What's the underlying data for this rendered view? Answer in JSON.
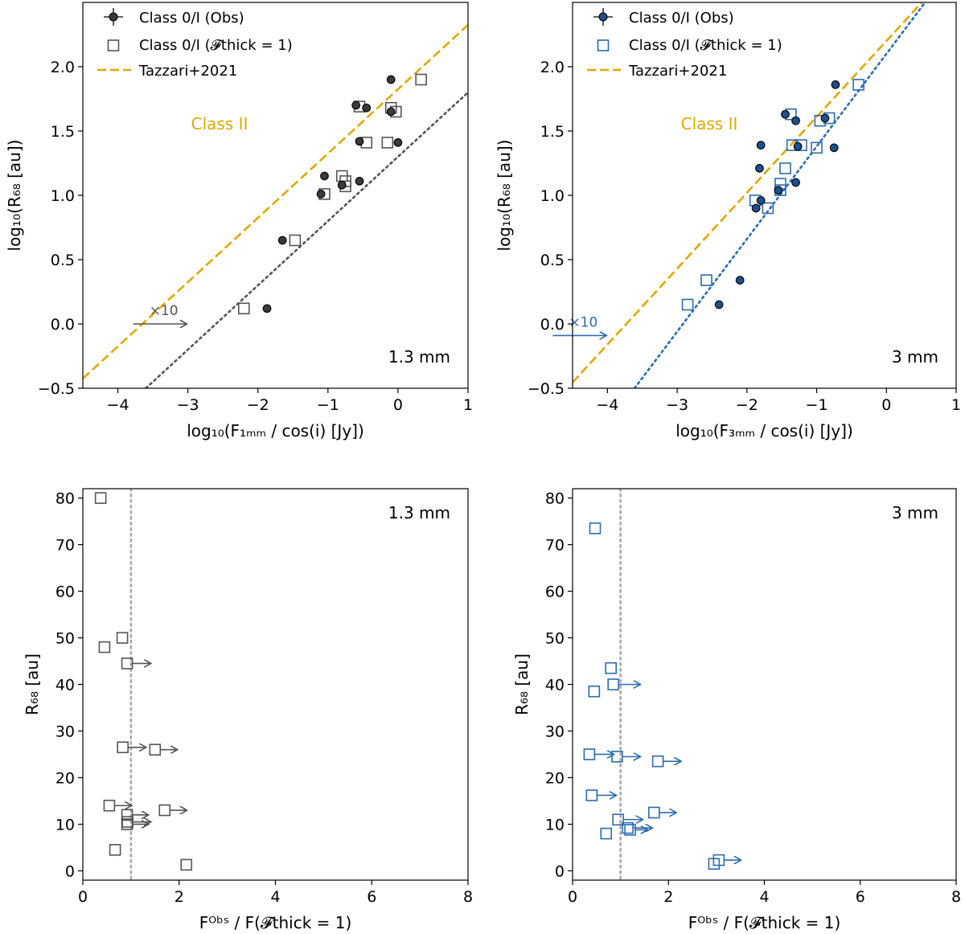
{
  "colors": {
    "gray_marker": "#3a3a3a",
    "gray_line": "#555555",
    "blue_marker": "#1f4e8c",
    "blue_line": "#2b6cb0",
    "tazzari": "#e0a800",
    "vline": "#a8a8a8"
  },
  "chart_data": [
    {
      "id": "top-left",
      "type": "scatter",
      "color_key": "gray",
      "xlabel": "log₁₀(F₁ₘₘ / cos(i) [Jy])",
      "ylabel": "log₁₀(R₆₈ [au])",
      "xlim": [
        -4.5,
        1.0
      ],
      "ylim": [
        -0.5,
        2.5
      ],
      "xticks": [
        -4,
        -3,
        -2,
        -1,
        0,
        1
      ],
      "yticks": [
        -0.5,
        0.0,
        0.5,
        1.0,
        1.5,
        2.0
      ],
      "xtick_labels": [
        "−4",
        "−3",
        "−2",
        "−1",
        "0",
        "1"
      ],
      "ytick_labels": [
        "−0.5",
        "0.0",
        "0.5",
        "1.0",
        "1.5",
        "2.0"
      ],
      "legend": [
        "Class 0/I (Obs)",
        "Class 0/I (𝓕thick = 1)",
        "Tazzari+2021"
      ],
      "legend_position": "top-left",
      "region_label": "Class II",
      "band_label": "1.3 mm",
      "arrow_label": "×10",
      "arrow_from": [
        -3.0,
        0.0
      ],
      "tazzari_line": {
        "slope": 0.5,
        "intercept": 1.825
      },
      "fit_line": {
        "slope": 0.5,
        "intercept": 1.3
      },
      "obs_points": [
        [
          -0.1,
          1.9
        ],
        [
          -0.6,
          1.7
        ],
        [
          -0.45,
          1.68
        ],
        [
          -0.1,
          1.65
        ],
        [
          -0.55,
          1.42
        ],
        [
          0.0,
          1.41
        ],
        [
          -1.05,
          1.15
        ],
        [
          -0.55,
          1.11
        ],
        [
          -0.8,
          1.08
        ],
        [
          -1.1,
          1.01
        ],
        [
          -1.65,
          0.65
        ],
        [
          -1.87,
          0.12
        ]
      ],
      "model_points": [
        [
          0.33,
          1.9
        ],
        [
          -0.55,
          1.69
        ],
        [
          -0.1,
          1.68
        ],
        [
          -0.03,
          1.65
        ],
        [
          -0.45,
          1.41
        ],
        [
          -0.15,
          1.41
        ],
        [
          -0.8,
          1.15
        ],
        [
          -0.75,
          1.11
        ],
        [
          -0.75,
          1.07
        ],
        [
          -1.05,
          1.01
        ],
        [
          -1.47,
          0.65
        ],
        [
          -2.2,
          0.12
        ]
      ]
    },
    {
      "id": "top-right",
      "type": "scatter",
      "color_key": "blue",
      "xlabel": "log₁₀(F₃ₘₘ / cos(i) [Jy])",
      "ylabel": "log₁₀(R₆₈ [au])",
      "xlim": [
        -4.5,
        1.0
      ],
      "ylim": [
        -0.5,
        2.5
      ],
      "xticks": [
        -4,
        -3,
        -2,
        -1,
        0,
        1
      ],
      "yticks": [
        -0.5,
        0.0,
        0.5,
        1.0,
        1.5,
        2.0
      ],
      "xtick_labels": [
        "−4",
        "−3",
        "−2",
        "−1",
        "0",
        "1"
      ],
      "ytick_labels": [
        "−0.5",
        "0.0",
        "0.5",
        "1.0",
        "1.5",
        "2.0"
      ],
      "legend": [
        "Class 0/I (Obs)",
        "Class 0/I (𝓕thick = 1)",
        "Tazzari+2021"
      ],
      "legend_position": "top-left",
      "region_label": "Class II",
      "band_label": "3 mm",
      "arrow_label": "×10",
      "arrow_from": [
        -4.0,
        -0.09
      ],
      "tazzari_line": {
        "slope": 0.59,
        "intercept": 2.2
      },
      "fit_line": {
        "slope": 0.72,
        "intercept": 2.1
      },
      "obs_points": [
        [
          -0.73,
          1.86
        ],
        [
          -1.45,
          1.63
        ],
        [
          -1.3,
          1.58
        ],
        [
          -0.88,
          1.6
        ],
        [
          -1.8,
          1.39
        ],
        [
          -1.27,
          1.38
        ],
        [
          -0.75,
          1.37
        ],
        [
          -1.82,
          1.21
        ],
        [
          -1.3,
          1.1
        ],
        [
          -1.55,
          1.04
        ],
        [
          -1.8,
          0.96
        ],
        [
          -1.87,
          0.9
        ],
        [
          -2.1,
          0.34
        ],
        [
          -2.4,
          0.15
        ]
      ],
      "model_points": [
        [
          -0.4,
          1.86
        ],
        [
          -1.37,
          1.63
        ],
        [
          -0.95,
          1.58
        ],
        [
          -0.82,
          1.6
        ],
        [
          -1.35,
          1.39
        ],
        [
          -1.22,
          1.39
        ],
        [
          -1.0,
          1.37
        ],
        [
          -1.45,
          1.21
        ],
        [
          -1.52,
          1.09
        ],
        [
          -1.52,
          1.04
        ],
        [
          -1.88,
          0.96
        ],
        [
          -1.7,
          0.9
        ],
        [
          -2.58,
          0.34
        ],
        [
          -2.85,
          0.15
        ]
      ]
    },
    {
      "id": "bottom-left",
      "type": "scatter",
      "color_key": "gray",
      "xlabel": "Fᴼᵇˢ / F(𝓕thick = 1)",
      "ylabel": "R₆₈ [au]",
      "xlim": [
        0,
        8
      ],
      "ylim": [
        -2,
        82
      ],
      "xticks": [
        0,
        2,
        4,
        6,
        8
      ],
      "yticks": [
        0,
        10,
        20,
        30,
        40,
        50,
        60,
        70,
        80
      ],
      "xtick_labels": [
        "0",
        "2",
        "4",
        "6",
        "8"
      ],
      "ytick_labels": [
        "0",
        "10",
        "20",
        "30",
        "40",
        "50",
        "60",
        "70",
        "80"
      ],
      "band_label": "1.3 mm",
      "vline_x": 1.0,
      "points": [
        [
          0.37,
          80
        ],
        [
          0.45,
          48
        ],
        [
          0.82,
          50
        ],
        [
          0.92,
          44.5
        ],
        [
          0.83,
          26.5
        ],
        [
          1.5,
          26
        ],
        [
          0.55,
          14
        ],
        [
          0.92,
          12
        ],
        [
          1.7,
          13
        ],
        [
          0.93,
          10.5
        ],
        [
          0.92,
          10
        ],
        [
          0.67,
          4.5
        ],
        [
          2.15,
          1.3
        ]
      ],
      "arrows": [
        [
          0.92,
          44.5,
          1.4
        ],
        [
          0.83,
          26.5,
          1.3
        ],
        [
          1.5,
          26,
          1.95
        ],
        [
          0.55,
          14,
          1.0
        ],
        [
          0.92,
          12,
          1.35
        ],
        [
          1.7,
          13,
          2.15
        ],
        [
          0.93,
          10.5,
          1.4
        ],
        [
          0.92,
          10,
          1.35
        ]
      ]
    },
    {
      "id": "bottom-right",
      "type": "scatter",
      "color_key": "blue",
      "xlabel": "Fᴼᵇˢ / F(𝓕thick = 1)",
      "ylabel": "R₆₈ [au]",
      "xlim": [
        0,
        8
      ],
      "ylim": [
        -2,
        82
      ],
      "xticks": [
        0,
        2,
        4,
        6,
        8
      ],
      "yticks": [
        0,
        10,
        20,
        30,
        40,
        50,
        60,
        70,
        80
      ],
      "xtick_labels": [
        "0",
        "2",
        "4",
        "6",
        "8"
      ],
      "ytick_labels": [
        "0",
        "10",
        "20",
        "30",
        "40",
        "50",
        "60",
        "70",
        "80"
      ],
      "band_label": "3 mm",
      "vline_x": 1.0,
      "points": [
        [
          0.47,
          73.5
        ],
        [
          0.8,
          43.5
        ],
        [
          0.45,
          38.5
        ],
        [
          0.85,
          40
        ],
        [
          0.35,
          25
        ],
        [
          0.93,
          24.5
        ],
        [
          1.78,
          23.5
        ],
        [
          0.4,
          16.2
        ],
        [
          1.7,
          12.5
        ],
        [
          0.95,
          11
        ],
        [
          1.15,
          9.2
        ],
        [
          1.2,
          8.8
        ],
        [
          0.7,
          8
        ],
        [
          3.05,
          2.3
        ],
        [
          2.95,
          1.5
        ]
      ],
      "arrows": [
        [
          0.85,
          40,
          1.4
        ],
        [
          0.35,
          25,
          0.85
        ],
        [
          0.93,
          24.5,
          1.4
        ],
        [
          1.78,
          23.5,
          2.25
        ],
        [
          0.4,
          16.2,
          0.9
        ],
        [
          1.7,
          12.5,
          2.15
        ],
        [
          0.95,
          11,
          1.45
        ],
        [
          1.15,
          9.2,
          1.65
        ],
        [
          1.2,
          8.8,
          1.55
        ],
        [
          3.05,
          2.3,
          3.5
        ]
      ]
    }
  ]
}
